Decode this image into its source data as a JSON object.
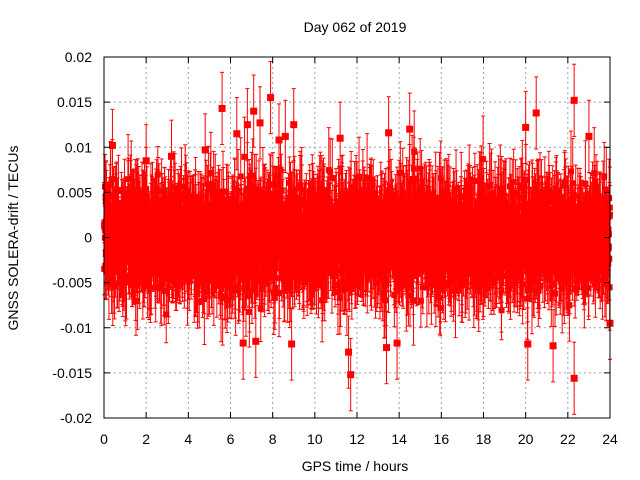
{
  "chart_data": {
    "type": "scatter",
    "title": "Day 062 of 2019",
    "xlabel": "GPS time / hours",
    "ylabel": "GNSS SOLERA-drift / TECUs",
    "xlim": [
      0,
      24
    ],
    "ylim": [
      -0.02,
      0.02
    ],
    "x_ticks": [
      0,
      2,
      4,
      6,
      8,
      10,
      12,
      14,
      16,
      18,
      20,
      22,
      24
    ],
    "x_tick_labels": [
      "0",
      "2",
      "4",
      "6",
      "8",
      "10",
      "12",
      "14",
      "16",
      "18",
      "20",
      "22",
      "24"
    ],
    "y_ticks": [
      -0.02,
      -0.015,
      -0.01,
      -0.005,
      0,
      0.005,
      0.01,
      0.015,
      0.02
    ],
    "y_tick_labels": [
      "-0.02",
      "-0.015",
      "-0.01",
      "-0.005",
      "0",
      "0.005",
      "0.01",
      "0.015",
      "0.02"
    ],
    "grid": true,
    "series_color": "#ff0000",
    "marker": "square-with-errorbars",
    "series": [
      {
        "x_start": 0,
        "x_end": 24,
        "n_points": 2880,
        "mean": 0,
        "std": 0.0035,
        "errorbar_halfwidth": 0.004,
        "highlighted_points": [
          {
            "x": 0.4,
            "y": 0.0102
          },
          {
            "x": 0.1,
            "y": 0.0045
          },
          {
            "x": 2.0,
            "y": 0.0085
          },
          {
            "x": 3.2,
            "y": 0.009
          },
          {
            "x": 4.8,
            "y": 0.0097
          },
          {
            "x": 5.6,
            "y": 0.0143
          },
          {
            "x": 6.3,
            "y": 0.0115
          },
          {
            "x": 6.8,
            "y": 0.0125
          },
          {
            "x": 7.1,
            "y": 0.014
          },
          {
            "x": 7.4,
            "y": 0.0127
          },
          {
            "x": 7.9,
            "y": 0.0155
          },
          {
            "x": 8.3,
            "y": 0.0108
          },
          {
            "x": 8.6,
            "y": 0.0112
          },
          {
            "x": 9.0,
            "y": 0.0125
          },
          {
            "x": 11.2,
            "y": 0.011
          },
          {
            "x": 13.5,
            "y": 0.0116
          },
          {
            "x": 14.5,
            "y": 0.012
          },
          {
            "x": 20.0,
            "y": 0.0122
          },
          {
            "x": 20.5,
            "y": 0.0138
          },
          {
            "x": 22.3,
            "y": 0.0152
          },
          {
            "x": 23.0,
            "y": 0.0112
          },
          {
            "x": 6.6,
            "y": -0.0117
          },
          {
            "x": 7.2,
            "y": -0.0115
          },
          {
            "x": 8.9,
            "y": -0.0118
          },
          {
            "x": 11.6,
            "y": -0.0127
          },
          {
            "x": 11.7,
            "y": -0.0152
          },
          {
            "x": 13.4,
            "y": -0.0122
          },
          {
            "x": 13.9,
            "y": -0.0117
          },
          {
            "x": 20.1,
            "y": -0.0118
          },
          {
            "x": 21.3,
            "y": -0.012
          },
          {
            "x": 22.3,
            "y": -0.0156
          },
          {
            "x": 24.0,
            "y": -0.0095
          }
        ]
      }
    ]
  }
}
